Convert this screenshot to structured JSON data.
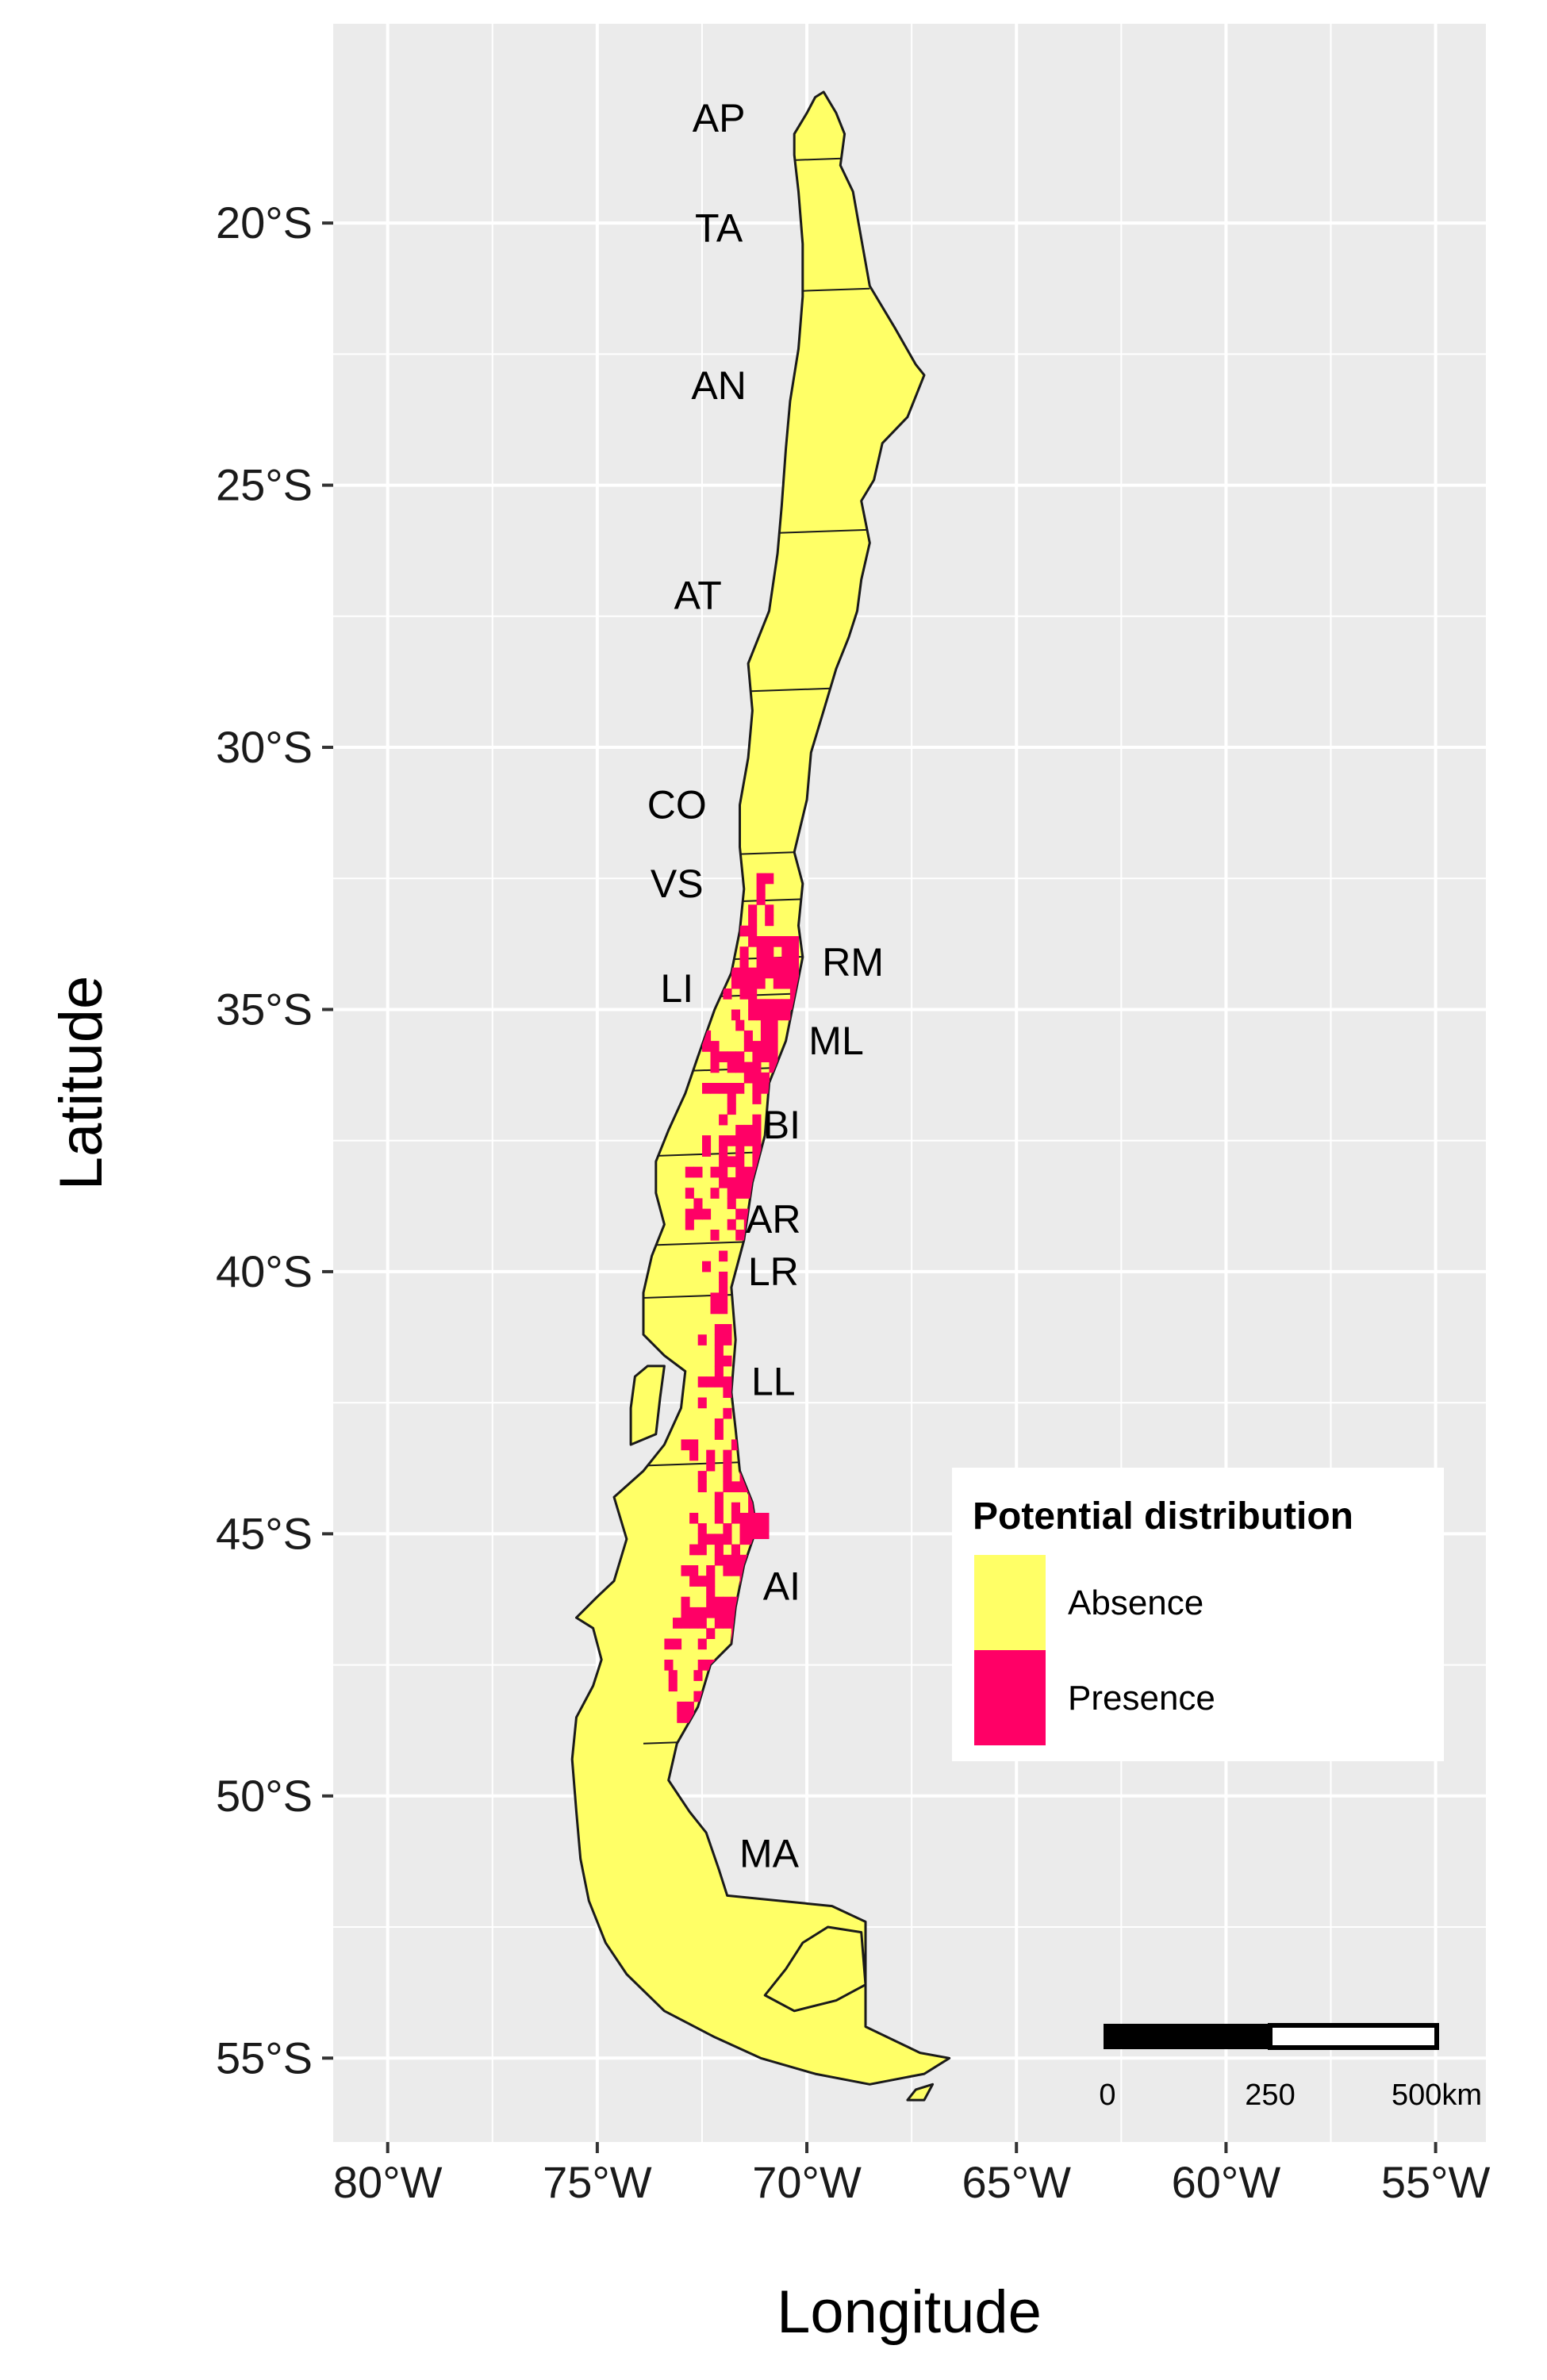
{
  "axes": {
    "xlabel": "Longitude",
    "ylabel": "Latitude",
    "x_ticks": [
      {
        "value": -80,
        "label": "80°W"
      },
      {
        "value": -75,
        "label": "75°W"
      },
      {
        "value": -70,
        "label": "70°W"
      },
      {
        "value": -65,
        "label": "65°W"
      },
      {
        "value": -60,
        "label": "60°W"
      },
      {
        "value": -55,
        "label": "55°W"
      }
    ],
    "y_ticks": [
      {
        "value": -20,
        "label": "20°S"
      },
      {
        "value": -25,
        "label": "25°S"
      },
      {
        "value": -30,
        "label": "30°S"
      },
      {
        "value": -35,
        "label": "35°S"
      },
      {
        "value": -40,
        "label": "40°S"
      },
      {
        "value": -45,
        "label": "45°S"
      },
      {
        "value": -50,
        "label": "50°S"
      },
      {
        "value": -55,
        "label": "55°S"
      }
    ],
    "xlim": [
      -81.3,
      -53.8
    ],
    "ylim": [
      -56.6,
      -16.2
    ],
    "grid": true
  },
  "regions": [
    {
      "code": "AP",
      "lon": -72.1,
      "lat": -18.0
    },
    {
      "code": "TA",
      "lon": -72.1,
      "lat": -20.1
    },
    {
      "code": "AN",
      "lon": -72.1,
      "lat": -23.1
    },
    {
      "code": "AT",
      "lon": -72.6,
      "lat": -27.1
    },
    {
      "code": "CO",
      "lon": -73.1,
      "lat": -31.1
    },
    {
      "code": "VS",
      "lon": -73.1,
      "lat": -32.6
    },
    {
      "code": "RM",
      "lon": -68.9,
      "lat": -34.1
    },
    {
      "code": "LI",
      "lon": -73.1,
      "lat": -34.6
    },
    {
      "code": "ML",
      "lon": -69.3,
      "lat": -35.6
    },
    {
      "code": "BI",
      "lon": -70.6,
      "lat": -37.2
    },
    {
      "code": "AR",
      "lon": -70.8,
      "lat": -39.0
    },
    {
      "code": "LR",
      "lon": -70.8,
      "lat": -40.0
    },
    {
      "code": "LL",
      "lon": -70.8,
      "lat": -42.1
    },
    {
      "code": "AI",
      "lon": -70.6,
      "lat": -46.0
    },
    {
      "code": "MA",
      "lon": -70.9,
      "lat": -51.1
    }
  ],
  "legend": {
    "title": "Potential distribution",
    "placement": "right",
    "items": [
      {
        "label": "Absence",
        "color": "#FFFF66"
      },
      {
        "label": "Presence",
        "color": "#FF0066"
      }
    ]
  },
  "scale_bar": {
    "labels": [
      "0",
      "250",
      "500km"
    ]
  },
  "colors": {
    "panel": "#EBEBEB",
    "grid": "#FFFFFF",
    "absence": "#FFFF66",
    "presence": "#FF0066",
    "outline": "#1a1a1a"
  }
}
